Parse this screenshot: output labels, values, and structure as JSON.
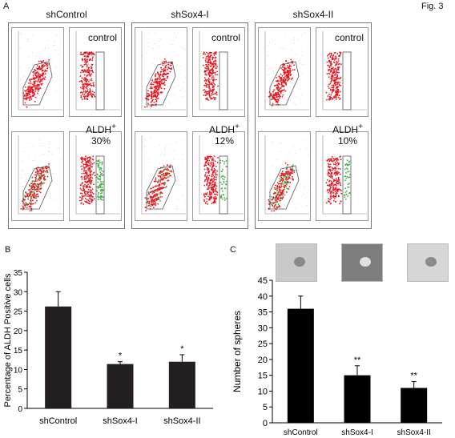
{
  "figure_label": "Fig. 3",
  "panel_a": {
    "letter": "A",
    "groups": [
      {
        "title": "shControl",
        "top_label": "control",
        "bottom_label": "ALDH",
        "bottom_sup": "+",
        "bottom_value": "30%"
      },
      {
        "title": "shSox4-I",
        "top_label": "control",
        "bottom_label": "ALDH",
        "bottom_sup": "+",
        "bottom_value": "12%"
      },
      {
        "title": "shSox4-II",
        "top_label": "control",
        "bottom_label": "ALDH",
        "bottom_sup": "+",
        "bottom_value": "10%"
      }
    ],
    "colors": {
      "events": "#e8141e",
      "aldh_events": "#3cb043",
      "gate": "#555555",
      "scatter_bg": "#cccccc"
    }
  },
  "panel_b": {
    "letter": "B"
  },
  "panel_c": {
    "letter": "C"
  },
  "chart_data": [
    {
      "type": "bar",
      "categories": [
        "shControl",
        "shSox4-I",
        "shSox4-II"
      ],
      "values": [
        26.2,
        11.4,
        12.0
      ],
      "errors": [
        3.8,
        0.6,
        1.8
      ],
      "significance": [
        "",
        "*",
        "*"
      ],
      "title": "",
      "xlabel": "",
      "ylabel": "Percentage of ALDH Positive cells",
      "ylim": [
        0,
        35
      ],
      "yticks": [
        0,
        5,
        10,
        15,
        20,
        25,
        30,
        35
      ],
      "bar_color": "#231f20",
      "grid": false
    },
    {
      "type": "bar",
      "categories": [
        "shControl",
        "shSox4-I",
        "shSox4-II"
      ],
      "values": [
        36,
        15,
        11
      ],
      "errors": [
        4,
        3,
        2
      ],
      "significance": [
        "",
        "**",
        "**"
      ],
      "title": "",
      "xlabel": "",
      "ylabel": "Number of spheres",
      "ylim": [
        0,
        45
      ],
      "yticks": [
        0,
        5,
        10,
        15,
        20,
        25,
        30,
        35,
        40,
        45
      ],
      "bar_color": "#000000",
      "grid": false
    }
  ]
}
